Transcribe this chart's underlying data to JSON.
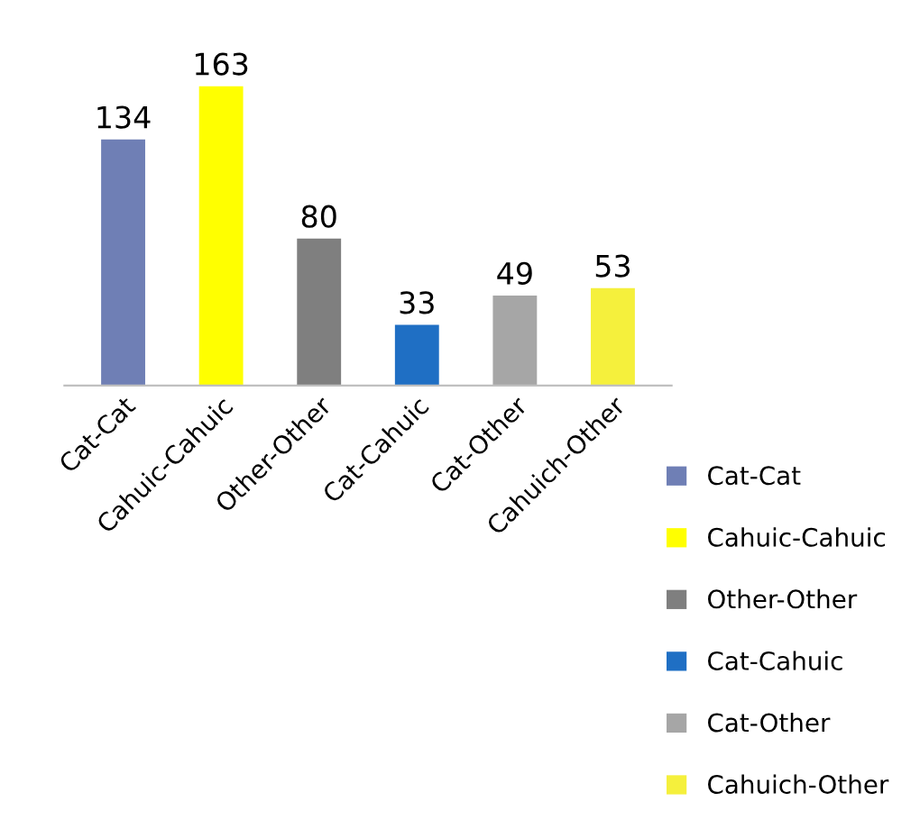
{
  "chart_data": {
    "type": "bar",
    "categories": [
      "Cat-Cat",
      "Cahuic-Cahuic",
      "Other-Other",
      "Cat-Cahuic",
      "Cat-Other",
      "Cahuich-Other"
    ],
    "series": [
      {
        "name": "Cat-Cat",
        "color": "#6f7fb5",
        "values": [
          134,
          null,
          null,
          null,
          null,
          null
        ]
      },
      {
        "name": "Cahuic-Cahuic",
        "color": "#ffff00",
        "values": [
          null,
          163,
          null,
          null,
          null,
          null
        ]
      },
      {
        "name": "Other-Other",
        "color": "#7f7f7f",
        "values": [
          null,
          null,
          80,
          null,
          null,
          null
        ]
      },
      {
        "name": "Cat-Cahuic",
        "color": "#1f6fc4",
        "values": [
          null,
          null,
          null,
          33,
          null,
          null
        ]
      },
      {
        "name": "Cat-Other",
        "color": "#a6a6a6",
        "values": [
          null,
          null,
          null,
          null,
          49,
          null
        ]
      },
      {
        "name": "Cahuich-Other",
        "color": "#f5f03c",
        "values": [
          null,
          null,
          null,
          null,
          null,
          53
        ]
      }
    ],
    "data_labels": true,
    "legend": "bottom right"
  }
}
